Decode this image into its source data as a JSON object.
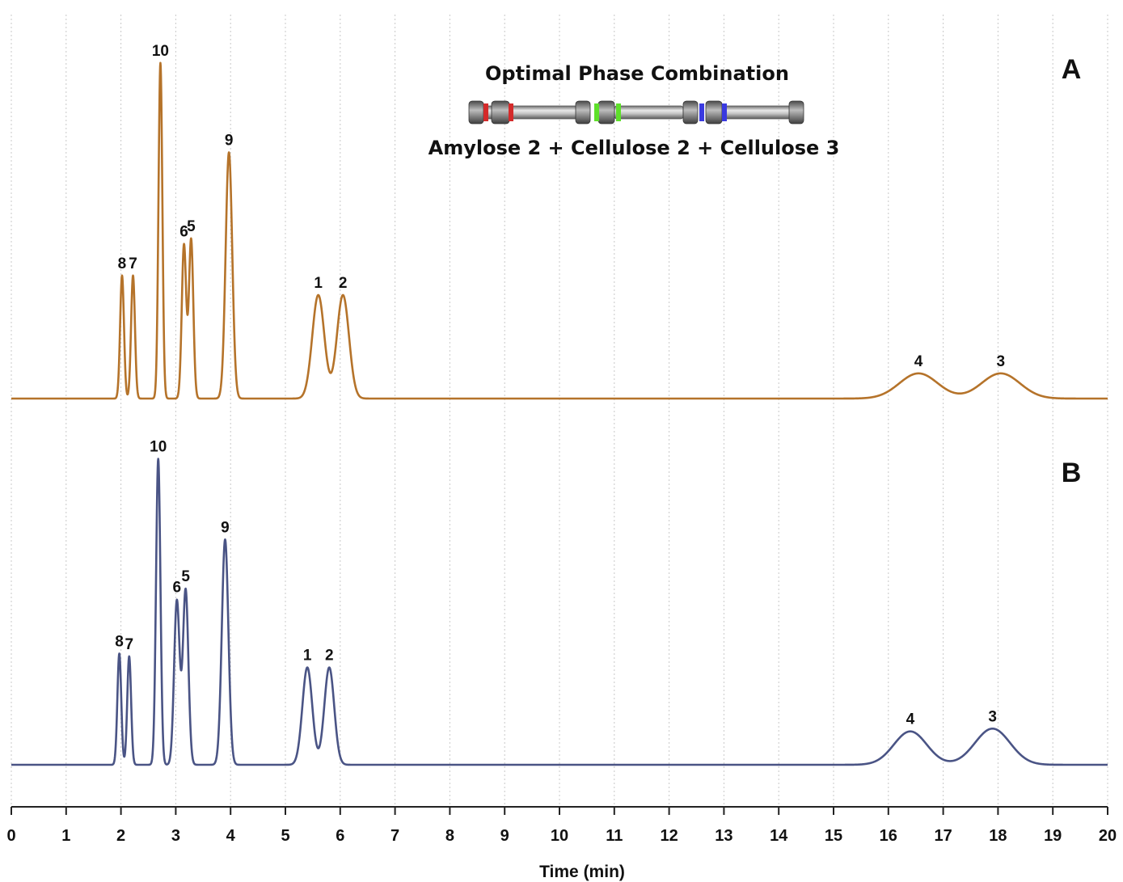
{
  "chart_data": {
    "type": "line",
    "xlabel": "Time (min)",
    "xlim": [
      0,
      20
    ],
    "x_ticks": [
      "0",
      "1",
      "2",
      "3",
      "4",
      "5",
      "6",
      "7",
      "8",
      "9",
      "10",
      "11",
      "12",
      "13",
      "14",
      "15",
      "16",
      "17",
      "18",
      "19",
      "20"
    ],
    "grid_vertical": true,
    "panels": [
      {
        "label": "A",
        "color": "#b5732a",
        "peaks": [
          {
            "label": "8",
            "t": 2.02,
            "h": 0.44,
            "w": 0.035
          },
          {
            "label": "7",
            "t": 2.22,
            "h": 0.44,
            "w": 0.035
          },
          {
            "label": "10",
            "t": 2.72,
            "h": 1.2,
            "w": 0.035
          },
          {
            "label": "6",
            "t": 3.15,
            "h": 0.55,
            "w": 0.04
          },
          {
            "label": "5",
            "t": 3.28,
            "h": 0.57,
            "w": 0.04
          },
          {
            "label": "9",
            "t": 3.97,
            "h": 0.88,
            "w": 0.06
          },
          {
            "label": "1",
            "t": 5.6,
            "h": 0.37,
            "w": 0.11
          },
          {
            "label": "2",
            "t": 6.05,
            "h": 0.37,
            "w": 0.11
          },
          {
            "label": "4",
            "t": 16.55,
            "h": 0.09,
            "w": 0.35
          },
          {
            "label": "3",
            "t": 18.05,
            "h": 0.09,
            "w": 0.35
          }
        ]
      },
      {
        "label": "B",
        "color": "#4a5485",
        "peaks": [
          {
            "label": "8",
            "t": 1.97,
            "h": 0.4,
            "w": 0.035
          },
          {
            "label": "7",
            "t": 2.15,
            "h": 0.39,
            "w": 0.035
          },
          {
            "label": "10",
            "t": 2.68,
            "h": 1.1,
            "w": 0.04
          },
          {
            "label": "6",
            "t": 3.02,
            "h": 0.59,
            "w": 0.05
          },
          {
            "label": "5",
            "t": 3.18,
            "h": 0.63,
            "w": 0.05
          },
          {
            "label": "9",
            "t": 3.9,
            "h": 0.81,
            "w": 0.06
          },
          {
            "label": "1",
            "t": 5.4,
            "h": 0.35,
            "w": 0.09
          },
          {
            "label": "2",
            "t": 5.8,
            "h": 0.35,
            "w": 0.09
          },
          {
            "label": "4",
            "t": 16.4,
            "h": 0.12,
            "w": 0.3
          },
          {
            "label": "3",
            "t": 17.9,
            "h": 0.13,
            "w": 0.32
          }
        ]
      }
    ]
  },
  "inset": {
    "title": "Optimal Phase Combination",
    "subtitle": "Amylose 2 + Cellulose 2 + Cellulose 3",
    "band_colors": [
      "#d42a2a",
      "#5ee02a",
      "#3a3ae0"
    ]
  }
}
